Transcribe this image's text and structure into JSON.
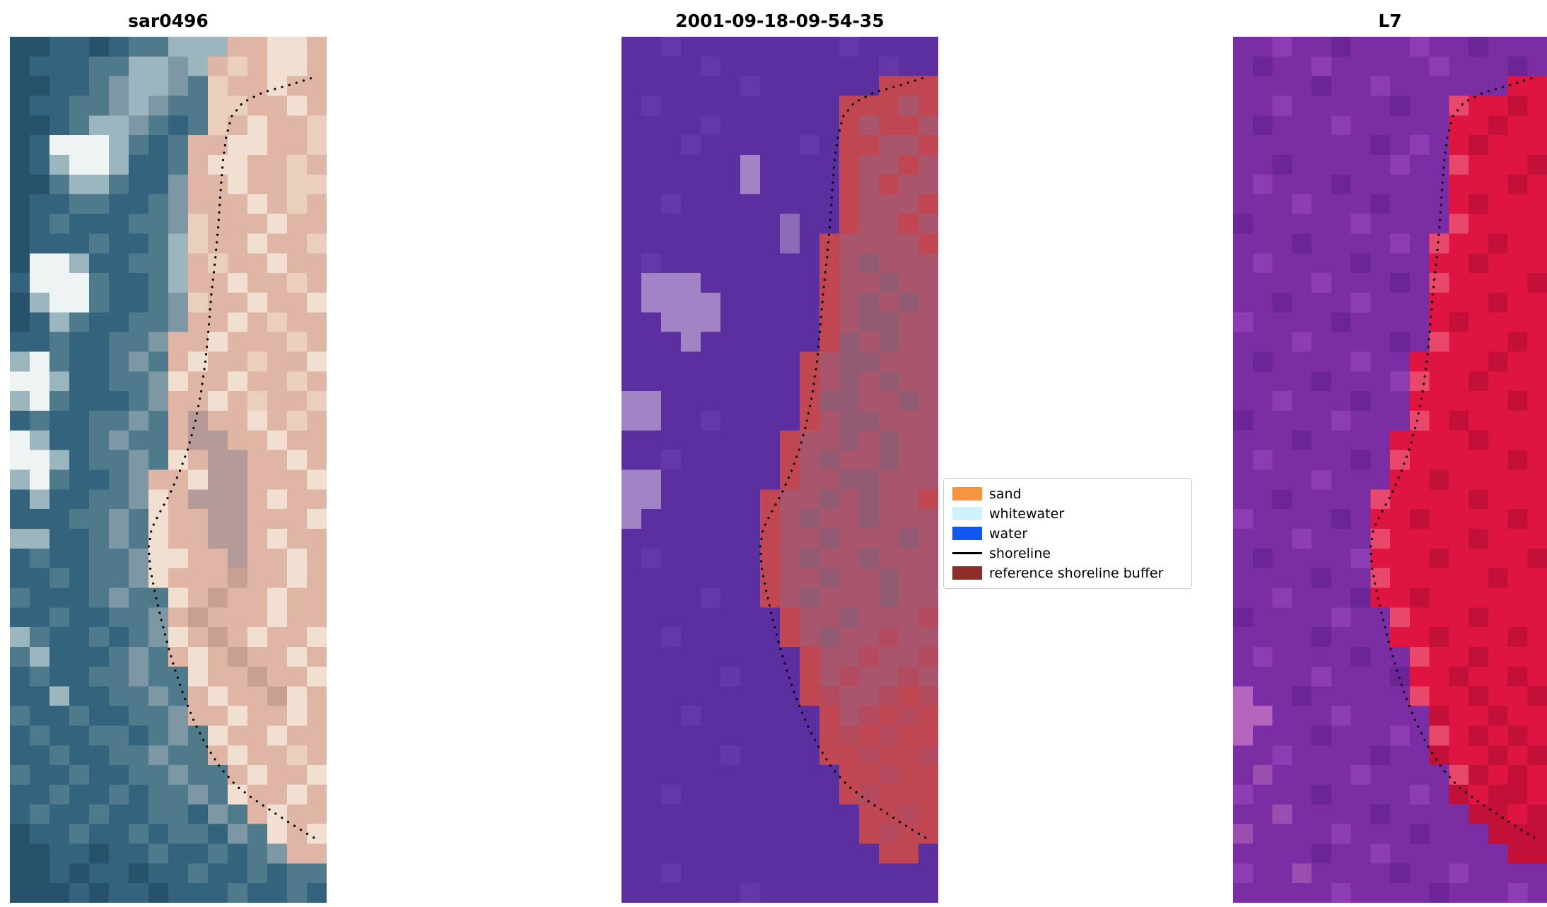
{
  "figure": {
    "background": "#ffffff"
  },
  "chart_data": {
    "type": "heatmap",
    "subtype": "satellite-image-panels",
    "description": "Three-panel coastal shoreline detection figure: SAR composite, classified image with reference shoreline buffer, and Landsat 7 composite, each overlaid with a dotted reference shoreline.",
    "legend_position": "right of center panel",
    "panels": [
      {
        "title": "sar0496",
        "palette": {
          "a": "#27526b",
          "b": "#34637e",
          "c": "#4f7a8c",
          "d": "#9cb6c0",
          "e": "#eef3f3",
          "f": "#e9cfbc",
          "g": "#dfb6a5",
          "h": "#f1e0d1",
          "i": "#b59a9a",
          "j": "#c7a090",
          "k": "#7d98a4"
        },
        "grid": [
          "aabbabccdddgghhg",
          "abbbccddkdgfghhg",
          "aabbckddkcfgghgg",
          "abbcckdkccffgghg",
          "aabcddkcbcfghggf",
          "abeeedcbcgghhggf",
          "abdeedbbcghhggfg",
          "aacddcbbkgghggff",
          "abbccbbckggghgfg",
          "abcbbbcckfggghgg",
          "abbbcbbcdfgghggf",
          "aeedbbccdgfgghgg",
          "beeecbbcdgghggfg",
          "adeecbbckfgghggh",
          "abdcbbcckgghgfgg",
          "bbcbbcckgghgggfg",
          "decbbckcghggfggh",
          "eedbbcckhgghggfg",
          "decbbbckgghgfggf",
          "bcbbcckcgigghgfg",
          "edbbckccgiigghgg",
          "eedbcckchgiigghg",
          "decbbckgghiigggh",
          "bdbbcckhgiiighgg",
          "bbbcckchggiigggh",
          "ddbbckchggiighgg",
          "bcbbcckhhggigghg",
          "bbcbcckhgggjgghg",
          "cbbbckcchgjgghgg",
          "bbcbbcckgjggghgg",
          "dcbbcbckhgjghggh",
          "cdbbbckcghgjgghg",
          "bcbbcckcchggjggh",
          "bbdbbcckcghggjhg",
          "cbbcbbcckgghgghg",
          "bcbbccbckchgghgg",
          "bbcbbcckccghggfg",
          "cbbcbbcckccghggh",
          "bbcbbcbcckchgghg",
          "bcbbcbbccbkcghgg",
          "abbcbbcbccbkchgh",
          "aabbabbcbbcbckgg",
          "aababbabbcbbcbcc",
          "aaababbabbbcbbcb"
        ]
      },
      {
        "title": "2001-09-18-09-54-35",
        "palette": {
          "p": "#5b2fa0",
          "q": "#6538aa",
          "u": "#a184c4",
          "v": "#8a6bb5",
          "r": "#c04752",
          "s": "#a9556c",
          "t": "#935a74",
          "w": "#b44a5e"
        },
        "grid": [
          "ppqppppppppqpppp",
          "ppppqppppppppqpp",
          "ppppppqpppppprrr",
          "pqppppppppprrrsr",
          "ppppqpppppprsrrs",
          "pppqpppppqprrssr",
          "ppppppupppprssrs",
          "ppppppupppprsrss",
          "ppqpppppppprsssr",
          "ppppppppvpprssrs",
          "ppppppppvprssssr",
          "pqpppppppprstsss",
          "puuupppppprsstss",
          "puuuuppppprststs",
          "ppuuuppppprsttss",
          "pppupppppprtstss",
          "ppppppppprsttsss",
          "ppppppppprststss",
          "uuppppppprttssts",
          "uuppqpppprsttsss",
          "pppppppprsststss",
          "ppqppppprstsstss",
          "uupppppprssttsss",
          "uuppppprsststssr",
          "upppppprstsstsss",
          "ppppppprsstsssts",
          "pqppppprstsstsss",
          "ppppppprsstsstss",
          "ppppqpprstssstss",
          "pppppppprsstsssw",
          "ppqppppprstsswss",
          "ppppppppprsswssw",
          "pppppqppprswssws",
          "ppppppppprwsswrw",
          "pppqpppppprswrwr",
          "pppppppppprwrwrr",
          "pppppqpppprrwrrw",
          "ppppppppppprrwrr",
          "ppqpppppppprwrrr",
          "pppppppppppprrwr",
          "pppppppppppprwrr",
          "ppppppppppppprrp",
          "ppqppppppppppppp",
          "ppppppqppppppppp"
        ]
      },
      {
        "title": "L7",
        "palette": {
          "m": "#7b2da4",
          "n": "#8d3db4",
          "o": "#6b2596",
          "R": "#dd1540",
          "S": "#c21038",
          "T": "#e8486b",
          "U": "#b565be",
          "V": "#9a4fb0"
        },
        "grid": [
          "mmnmmommmnmmommm",
          "mommnmmmmmnmmmom",
          "mmmmommnmmmmmmRR",
          "mmnmmmmmommTRRSR",
          "mommmnmmmmmRRSRR",
          "mmmmmmmomnmRSRRR",
          "mmommmmmnmmTRRRS",
          "mnmmmommmmmRRRSR",
          "mmmnmmmommmRSRRR",
          "ommmmmnmmmmTRRRR",
          "mmmommmmnmTRRSRR",
          "mnmmmmommmRRSRRR",
          "mmmmnmmmomTRRRRS",
          "mmommmnmmmRRRSRR",
          "nmmmmommmmRSRRRR",
          "mmmnmmmmomTRRRSR",
          "mommmmnmmRRRRSRR",
          "mmmmommmnTRRSRRR",
          "mmnmmmommRRRRRSR",
          "ommmmnmmmTRSRRRR",
          "mmmommmmRRRRSRRR",
          "mnmmmmomTRRRRRSR",
          "mmmmnmmmRRSRRRRR",
          "mmommmmTRRRRSRRR",
          "nmmmmomRRSRRRRSR",
          "mmmnmmmTRRRRSRRR",
          "mommmmnRRRSRRRRS",
          "mmmmommTRRRRRSRR",
          "mmnmmmoRRSRRRRRR",
          "ommmmnmmTRRRSRRR",
          "mmmmommmRRSRRRSR",
          "mnmmmmommTRRSRRR",
          "mmmmnmmmoRRSRRSR",
          "UmmommmmmTRRSRRS",
          "UUmmmnmmmmSRRSRR",
          "UmmmommmnmTRSRSR",
          "mmnmmmmommSRRSRS",
          "mVmmmmnmmmmTSRSR",
          "nmmmommmmnmSRSSR",
          "mmVmmmmommmmSSRS",
          "VmmmmnmmmommmSSS",
          "mmmmommnmmmmmmSS",
          "nmmVmmmmommnmmmm",
          "mmmmmnmmmmommmnm"
        ]
      }
    ],
    "legend": {
      "entries": [
        {
          "label": "sand",
          "swatch": "patch",
          "color": "#f7953f"
        },
        {
          "label": "whitewater",
          "swatch": "patch",
          "color": "#ccf2ff"
        },
        {
          "label": "water",
          "swatch": "patch",
          "color": "#1257f2"
        },
        {
          "label": "shoreline",
          "swatch": "line",
          "color": "#000000"
        },
        {
          "label": "reference shoreline buffer",
          "swatch": "patch",
          "color": "#8c2d28"
        }
      ]
    },
    "shoreline": {
      "color": "#000000",
      "style": "dotted",
      "points": [
        [
          0.95,
          0.048
        ],
        [
          0.88,
          0.056
        ],
        [
          0.8,
          0.064
        ],
        [
          0.735,
          0.076
        ],
        [
          0.7,
          0.092
        ],
        [
          0.683,
          0.115
        ],
        [
          0.672,
          0.145
        ],
        [
          0.665,
          0.18
        ],
        [
          0.658,
          0.218
        ],
        [
          0.648,
          0.258
        ],
        [
          0.636,
          0.298
        ],
        [
          0.627,
          0.338
        ],
        [
          0.617,
          0.376
        ],
        [
          0.603,
          0.412
        ],
        [
          0.585,
          0.445
        ],
        [
          0.563,
          0.475
        ],
        [
          0.535,
          0.503
        ],
        [
          0.505,
          0.528
        ],
        [
          0.472,
          0.55
        ],
        [
          0.447,
          0.568
        ],
        [
          0.438,
          0.59
        ],
        [
          0.443,
          0.614
        ],
        [
          0.458,
          0.642
        ],
        [
          0.477,
          0.672
        ],
        [
          0.498,
          0.702
        ],
        [
          0.522,
          0.732
        ],
        [
          0.55,
          0.762
        ],
        [
          0.583,
          0.792
        ],
        [
          0.622,
          0.82
        ],
        [
          0.666,
          0.845
        ],
        [
          0.715,
          0.865
        ],
        [
          0.768,
          0.88
        ],
        [
          0.822,
          0.893
        ],
        [
          0.876,
          0.906
        ],
        [
          0.928,
          0.918
        ],
        [
          0.965,
          0.926
        ]
      ]
    }
  }
}
